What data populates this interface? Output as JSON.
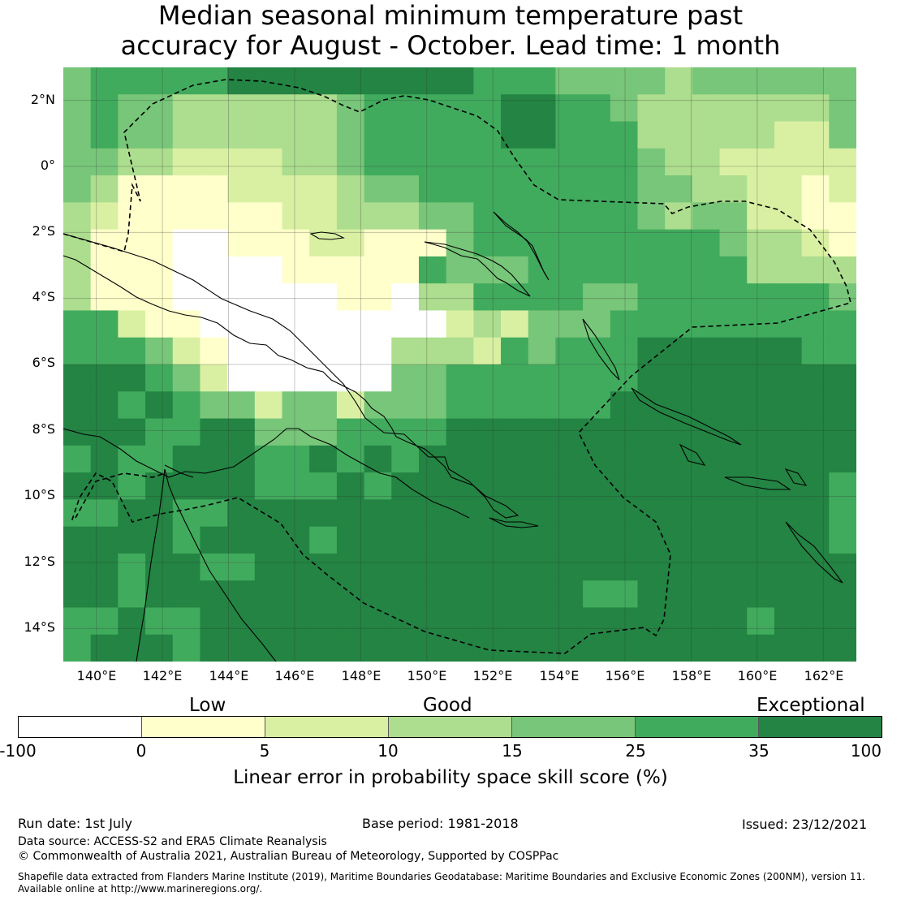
{
  "title_line1": "Median seasonal minimum temperature past",
  "title_line2": "accuracy for August - October. Lead time: 1 month",
  "map": {
    "lat_labels": [
      "2°N",
      "0°",
      "2°S",
      "4°S",
      "6°S",
      "8°S",
      "10°S",
      "12°S",
      "14°S"
    ],
    "lon_labels": [
      "140°E",
      "142°E",
      "144°E",
      "146°E",
      "148°E",
      "150°E",
      "152°E",
      "154°E",
      "156°E",
      "158°E",
      "160°E",
      "162°E"
    ],
    "lat_range": [
      -15,
      3
    ],
    "lon_range": [
      139,
      163
    ],
    "grid_lines": true,
    "colors": {
      "white": "#ffffff",
      "lowest": "#ffffcc",
      "low": "#d9f0a3",
      "moderate": "#addd8e",
      "good": "#78c679",
      "high": "#41ab5d",
      "exceptional": "#238443"
    }
  },
  "legend": {
    "category_labels": [
      "Low",
      "Good",
      "Exceptional"
    ],
    "tick_labels": [
      "-100",
      "0",
      "5",
      "10",
      "15",
      "25",
      "35",
      "100"
    ],
    "bin_colors": [
      "#ffffff",
      "#ffffcc",
      "#d9f0a3",
      "#addd8e",
      "#78c679",
      "#41ab5d",
      "#238443"
    ],
    "axis_label": "Linear error in probability space skill score (%)"
  },
  "footer": {
    "run_date": "Run date: 1st July",
    "base_period": "Base period: 1981-2018",
    "issued": "Issued: 23/12/2021",
    "data_source": "Data source: ACCESS-S2 and ERA5 Climate Reanalysis",
    "copyright": "© Commonwealth of Australia 2021, Australian Bureau of Meteorology, Supported by COSPPac",
    "shapefile_line1": "Shapefile data extracted from Flanders Marine Institute (2019), Maritime Boundaries Geodatabase: Maritime Boundaries and Exclusive Economic Zones (200NM), version 11.",
    "shapefile_line2": "Available online at http://www.marineregions.org/."
  }
}
